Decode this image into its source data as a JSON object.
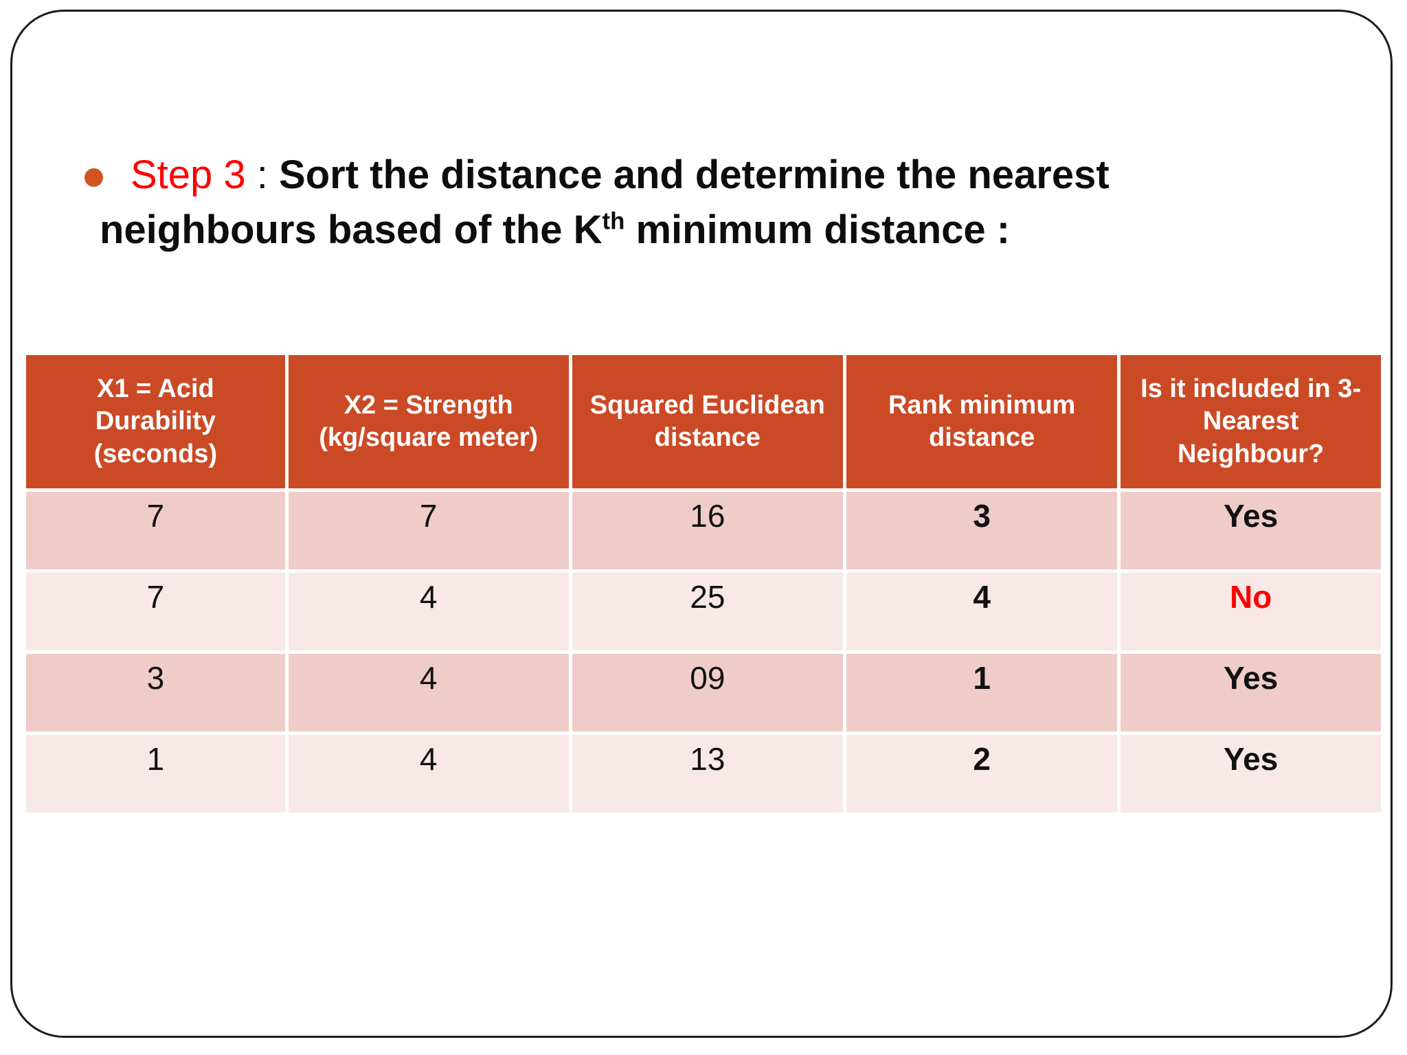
{
  "slide": {
    "colors": {
      "header_bg": "#CB4A26",
      "header_text": "#FFFFFF",
      "row_dark": "#F0CCC9",
      "row_light": "#F9E8E8",
      "step_red": "#FF0000",
      "no_red": "#FF0000",
      "bullet": "#D0541F"
    },
    "title": {
      "step_label": "Step 3",
      "separator": " : ",
      "line1_bold": "Sort the distance and determine the nearest",
      "line2_pre": "neighbours based of the K",
      "line2_sup": "th",
      "line2_post": " minimum distance :"
    },
    "table": {
      "headers": [
        "X1 = Acid Durability (seconds)",
        "X2 = Strength (kg/square meter)",
        "Squared Euclidean distance",
        "Rank minimum distance",
        "Is it included in 3-Nearest Neighbour?"
      ],
      "rows": [
        {
          "x1": "7",
          "x2": "7",
          "distance": "16",
          "rank": "3",
          "included": "Yes"
        },
        {
          "x1": "7",
          "x2": "4",
          "distance": "25",
          "rank": "4",
          "included": "No"
        },
        {
          "x1": "3",
          "x2": "4",
          "distance": "09",
          "rank": "1",
          "included": "Yes"
        },
        {
          "x1": "1",
          "x2": "4",
          "distance": "13",
          "rank": "2",
          "included": "Yes"
        }
      ]
    }
  }
}
